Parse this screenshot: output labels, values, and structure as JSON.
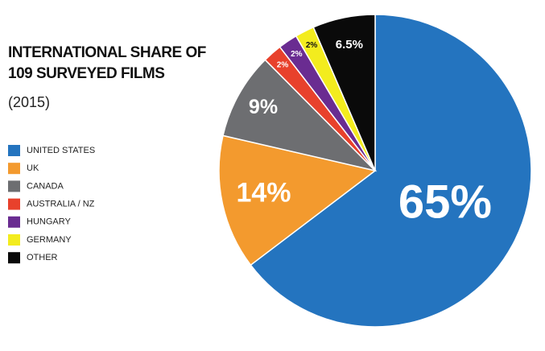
{
  "chart_data": {
    "type": "pie",
    "title": "INTERNATIONAL SHARE OF 109 SURVEYED FILMS",
    "subtitle": "(2015)",
    "categories": [
      "UNITED STATES",
      "UK",
      "CANADA",
      "AUSTRALIA / NZ",
      "HUNGARY",
      "GERMANY",
      "OTHER"
    ],
    "values": [
      65,
      14,
      9,
      2,
      2,
      2,
      6.5
    ],
    "value_labels": [
      "65%",
      "14%",
      "9%",
      "2%",
      "2%",
      "2%",
      "6.5%"
    ],
    "colors": [
      "#2474bf",
      "#f39a2e",
      "#6d6e71",
      "#e8412c",
      "#6a2c91",
      "#f3ec1e",
      "#0a0a0a"
    ],
    "legend": "left"
  }
}
